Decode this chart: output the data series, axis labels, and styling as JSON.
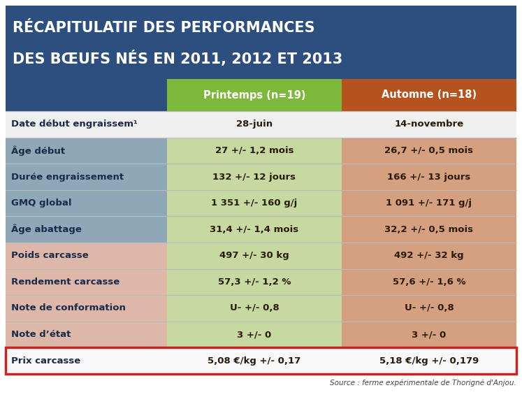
{
  "title_line1": "RÉCAPITULATIF DES PERFORMANCES",
  "title_line2": "DES BŒUFS NÉS EN 2011, 2012 ET 2013",
  "col_headers": [
    "Printemps (n=19)",
    "Automne (n=18)"
  ],
  "col_header_colors": [
    "#7db83a",
    "#b5521e"
  ],
  "rows": [
    {
      "label": "Date début engraissem¹",
      "printemps": "28-juin",
      "automne": "14-novembre",
      "bg_label": "#f0f0f0",
      "bg_printemps": "#f0f0f0",
      "bg_automne": "#f0f0f0",
      "bold": false
    },
    {
      "label": "Âge début",
      "printemps": "27 +/- 1,2 mois",
      "automne": "26,7 +/- 0,5 mois",
      "bg_label": "#8fa8b8",
      "bg_printemps": "#c5d9a0",
      "bg_automne": "#d4a080",
      "bold": false
    },
    {
      "label": "Durée engraissement",
      "printemps": "132 +/- 12 jours",
      "automne": "166 +/- 13 jours",
      "bg_label": "#8fa8b8",
      "bg_printemps": "#c5d9a0",
      "bg_automne": "#d4a080",
      "bold": false
    },
    {
      "label": "GMQ global",
      "printemps": "1 351 +/- 160 g/j",
      "automne": "1 091 +/- 171 g/j",
      "bg_label": "#8fa8b8",
      "bg_printemps": "#c5d9a0",
      "bg_automne": "#d4a080",
      "bold": false
    },
    {
      "label": "Âge abattage",
      "printemps": "31,4 +/- 1,4 mois",
      "automne": "32,2 +/- 0,5 mois",
      "bg_label": "#8fa8b8",
      "bg_printemps": "#c5d9a0",
      "bg_automne": "#d4a080",
      "bold": false
    },
    {
      "label": "Poids carcasse",
      "printemps": "497 +/- 30 kg",
      "automne": "492 +/- 32 kg",
      "bg_label": "#ddb8a8",
      "bg_printemps": "#c5d9a0",
      "bg_automne": "#d4a080",
      "bold": false
    },
    {
      "label": "Rendement carcasse",
      "printemps": "57,3 +/- 1,2 %",
      "automne": "57,6 +/- 1,6 %",
      "bg_label": "#ddb8a8",
      "bg_printemps": "#c5d9a0",
      "bg_automne": "#d4a080",
      "bold": false
    },
    {
      "label": "Note de conformation",
      "printemps": "U- +/- 0,8",
      "automne": "U- +/- 0,8",
      "bg_label": "#ddb8a8",
      "bg_printemps": "#c5d9a0",
      "bg_automne": "#d4a080",
      "bold": false
    },
    {
      "label": "Note d’état",
      "printemps": "3 +/- 0",
      "automne": "3 +/- 0",
      "bg_label": "#ddb8a8",
      "bg_printemps": "#c5d9a0",
      "bg_automne": "#d4a080",
      "bold": false
    },
    {
      "label": "Prix carcasse",
      "printemps": "5,08 €/kg +/- 0,17",
      "automne": "5,18 €/kg +/- 0,179",
      "bg_label": "#f8f8f8",
      "bg_printemps": "#f8f8f8",
      "bg_automne": "#f8f8f8",
      "bold": true
    }
  ],
  "source": "Source : ferme expérimentale de Thorigné d'Anjou.",
  "title_bg": "#2d4f7f",
  "title_color": "#ffffff",
  "header_text_color": "#ffffff",
  "body_label_color": "#1a2a4a",
  "body_value_color": "#2a1a0a",
  "last_row_border_color": "#cc2222",
  "grid_color": "#bbbbbb"
}
